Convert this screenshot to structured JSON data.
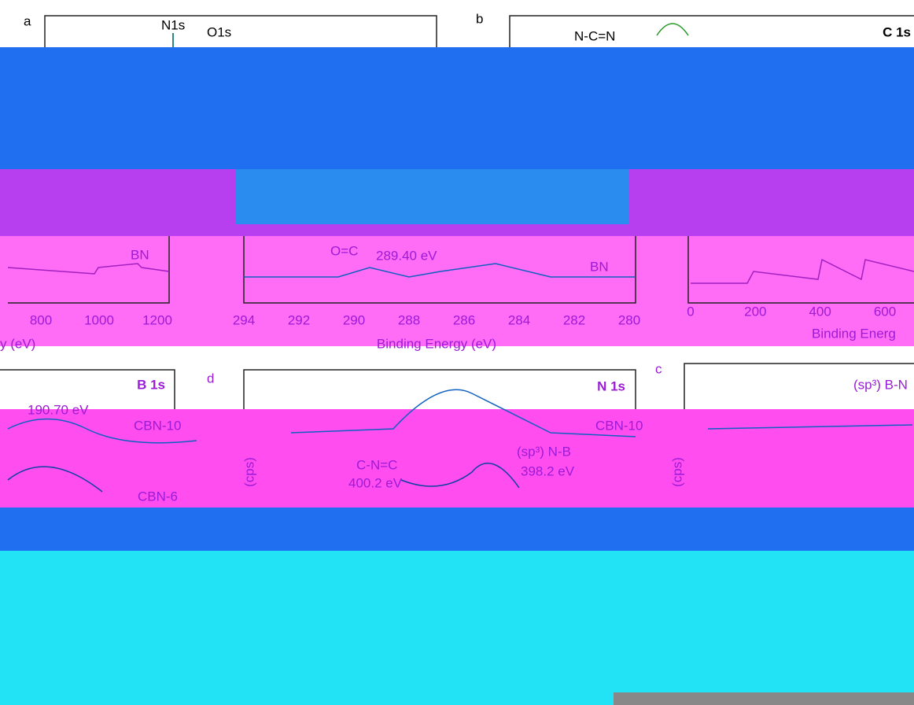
{
  "panels": [
    {
      "label": "a",
      "peaks": [
        "N1s",
        "O1s"
      ],
      "sample": "BN",
      "ticks": [
        "800",
        "1000",
        "1200"
      ],
      "axis_label": "y (eV)"
    },
    {
      "label": "b",
      "title": "C 1s",
      "annotations": [
        "N-C=N",
        "O=C",
        "289.40 eV"
      ],
      "sample": "BN",
      "ticks": [
        "294",
        "292",
        "290",
        "288",
        "286",
        "284",
        "282",
        "280"
      ],
      "axis_label": "Binding Energy (eV)"
    },
    {
      "ticks": [
        "0",
        "200",
        "400",
        "600"
      ],
      "axis_label": "Binding Energ"
    },
    {
      "title": "B 1s",
      "annotations": [
        "190.70 eV"
      ],
      "samples": [
        "CBN-10",
        "CBN-6"
      ]
    },
    {
      "label": "d",
      "title": "N 1s",
      "samples": [
        "CBN-10"
      ],
      "annotations": [
        "(sp³) N-B",
        "398.2 eV",
        "C-N=C",
        "400.2 eV"
      ],
      "y_axis_label": "(cps)"
    },
    {
      "label": "c",
      "title": "(sp³) B-N",
      "y_axis_label": "(cps)"
    }
  ]
}
